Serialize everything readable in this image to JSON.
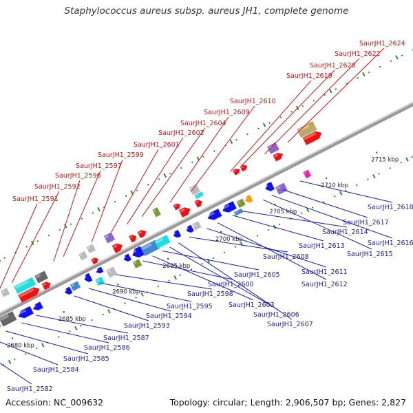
{
  "title": "Staphylococcus aureus subsp. aureus JH1, complete genome",
  "accession": "Accession: NC_009632",
  "summary": "Topology: circular; Length: 2,906,507 bp; Genes: 2,827",
  "colors": {
    "forward": "#ee1111",
    "reverse": "#1111ee",
    "cyan": "#22dddd",
    "olive": "#779933",
    "orange": "#ff9900",
    "purple": "#8866cc",
    "khaki": "#bbaa66",
    "magenta": "#ee22aa",
    "gray": "#bbbbbb",
    "dark": "#666666",
    "steel": "#4488cc",
    "backbone": "#888888",
    "tick": "#2a8a2a"
  },
  "ticks": [
    "2680 kbp",
    "2685 kbp",
    "2690 kbp",
    "2695 kbp",
    "2700 kbp",
    "2705 kbp",
    "2710 kbp",
    "2715 kbp"
  ],
  "genes_top": [
    "SaurJH1_2591",
    "SaurJH1_2592",
    "SaurJH1_2596",
    "SaurJH1_2597",
    "SaurJH1_2599",
    "SaurJH1_2601",
    "SaurJH1_2602",
    "SaurJH1_2604",
    "SaurJH1_2609",
    "SaurJH1_2610",
    "SaurJH1_2619",
    "SaurJH1_2620",
    "SaurJH1_2622",
    "SaurJH1_2624"
  ],
  "genes_bottom": [
    "SaurJH1_2582",
    "SaurJH1_2584",
    "SaurJH1_2585",
    "SaurJH1_2586",
    "SaurJH1_2587",
    "SaurJH1_2593",
    "SaurJH1_2594",
    "SaurJH1_2595",
    "SaurJH1_2598",
    "SaurJH1_2600",
    "SaurJH1_2603",
    "SaurJH1_2605",
    "SaurJH1_2606",
    "SaurJH1_2607",
    "SaurJH1_2608",
    "SaurJH1_2611",
    "SaurJH1_2612",
    "SaurJH1_2613",
    "SaurJH1_2614",
    "SaurJH1_2615",
    "SaurJH1_2616",
    "SaurJH1_2617",
    "SaurJH1_2618"
  ]
}
